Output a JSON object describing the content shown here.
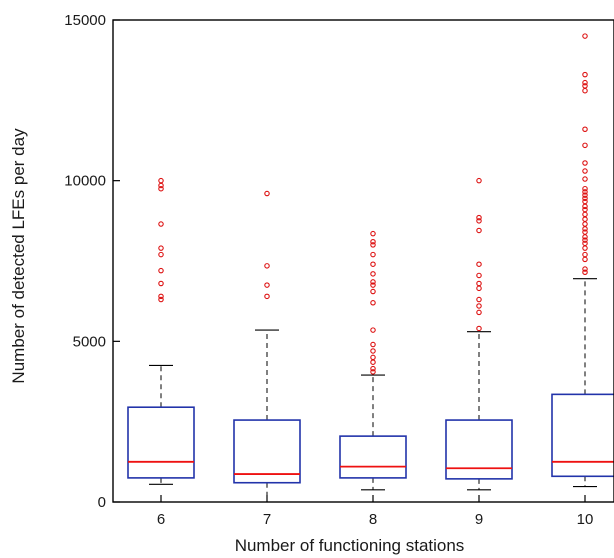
{
  "chart_data": {
    "type": "box",
    "xlabel": "Number of functioning stations",
    "ylabel": "Number of detected LFEs per day",
    "ylim": [
      0,
      15000
    ],
    "yticks": [
      0,
      5000,
      10000,
      15000
    ],
    "grid": false,
    "categories": [
      "6",
      "7",
      "8",
      "9",
      "10"
    ],
    "boxes": [
      {
        "category": "6",
        "whisker_low": 550,
        "q1": 750,
        "median": 1250,
        "q3": 2950,
        "whisker_high": 4250,
        "outliers": [
          6300,
          6400,
          6800,
          7200,
          7700,
          7900,
          8650,
          9750,
          9850,
          10000
        ]
      },
      {
        "category": "7",
        "whisker_low": 0,
        "q1": 600,
        "median": 870,
        "q3": 2550,
        "whisker_high": 5350,
        "outliers": [
          6400,
          6750,
          7350,
          9600
        ]
      },
      {
        "category": "8",
        "whisker_low": 380,
        "q1": 750,
        "median": 1100,
        "q3": 2050,
        "whisker_high": 3950,
        "outliers": [
          4050,
          4150,
          4350,
          4500,
          4700,
          4900,
          5350,
          6200,
          6550,
          6750,
          6850,
          7100,
          7400,
          7700,
          8000,
          8100,
          8350
        ]
      },
      {
        "category": "9",
        "whisker_low": 380,
        "q1": 720,
        "median": 1050,
        "q3": 2550,
        "whisker_high": 5300,
        "outliers": [
          5400,
          5900,
          6100,
          6300,
          6650,
          6800,
          7050,
          7400,
          8450,
          8750,
          8850,
          10000
        ]
      },
      {
        "category": "10",
        "whisker_low": 480,
        "q1": 800,
        "median": 1250,
        "q3": 3350,
        "whisker_high": 6950,
        "outliers": [
          7150,
          7250,
          7550,
          7700,
          7900,
          8050,
          8150,
          8250,
          8400,
          8500,
          8650,
          8800,
          8950,
          9100,
          9200,
          9350,
          9450,
          9550,
          9650,
          9750,
          10050,
          10300,
          10550,
          11100,
          11600,
          12800,
          12950,
          13050,
          13300,
          14500
        ]
      }
    ],
    "colors": {
      "box": "#2233aa",
      "median": "#ee1111",
      "outlier": "#dd1111",
      "whisker": "#000000",
      "axis": "#000000"
    }
  }
}
